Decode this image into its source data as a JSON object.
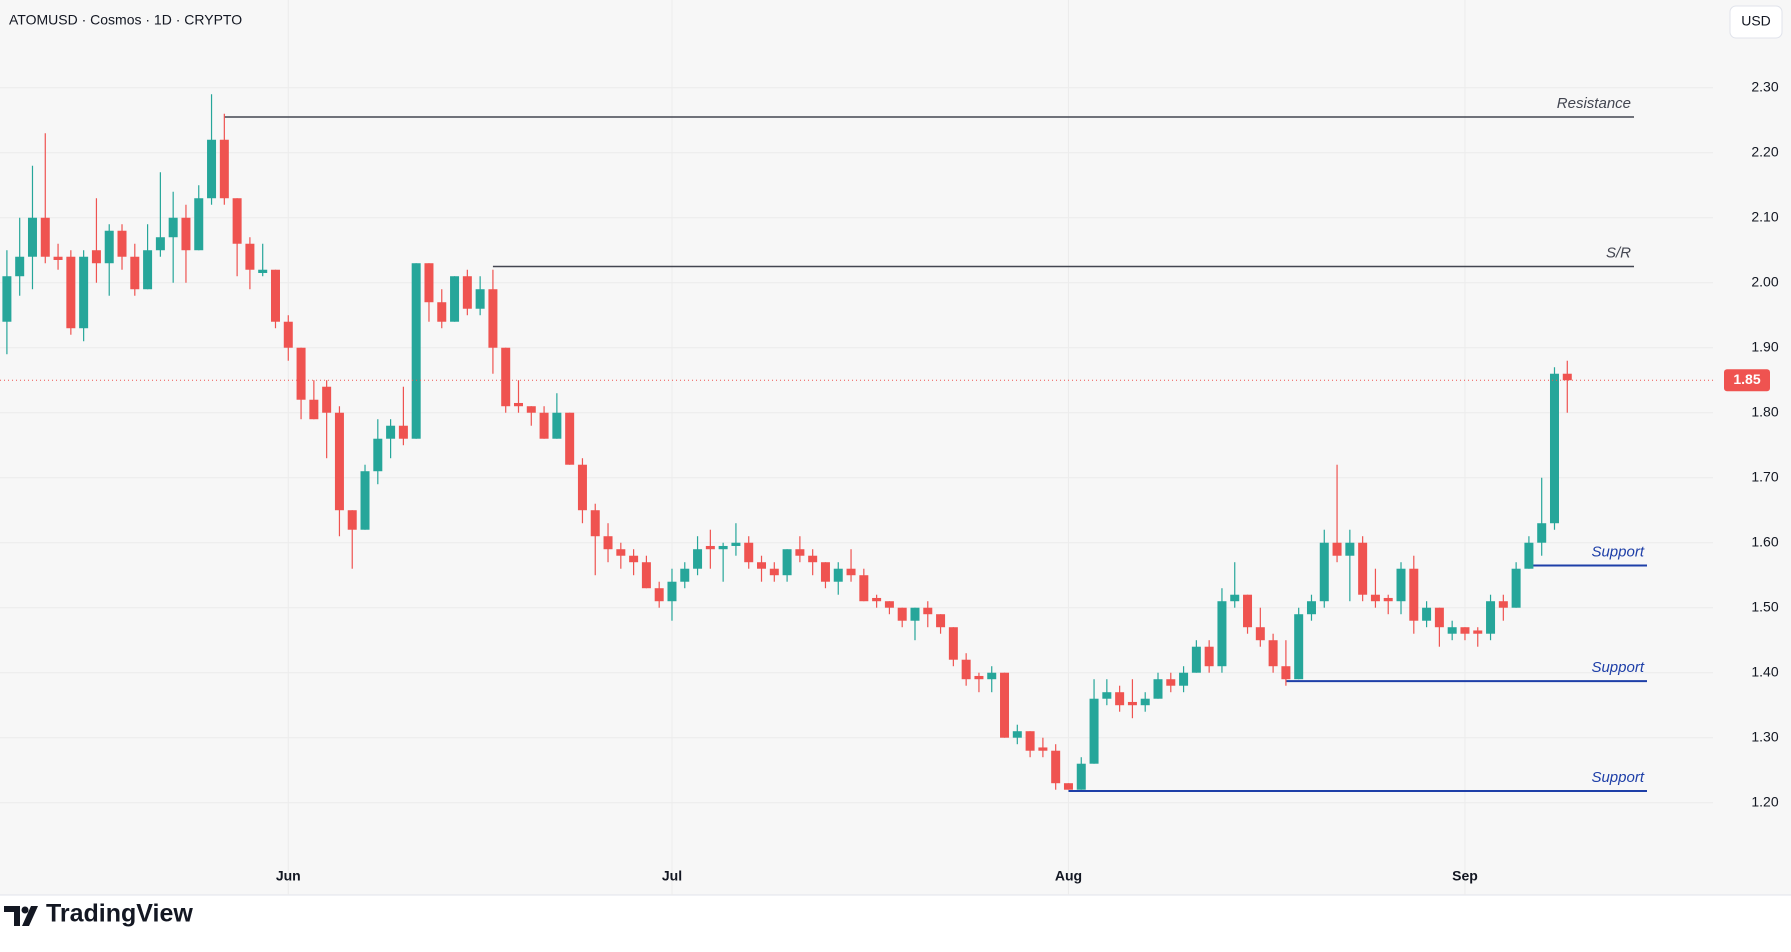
{
  "chart_data": {
    "type": "candlestick",
    "title": "ATOMUSD · Cosmos · 1D · CRYPTO",
    "currency": "USD",
    "brand": "TradingView",
    "up_color": "#26a69a",
    "down_color": "#ef5350",
    "categories": [
      null,
      null,
      null,
      null,
      null,
      null,
      null,
      null,
      null,
      null,
      null,
      null,
      null,
      null,
      null,
      null,
      null,
      null,
      null,
      null,
      null,
      null,
      "Jun",
      null,
      null,
      null,
      null,
      null,
      null,
      null,
      null,
      null,
      null,
      null,
      null,
      null,
      null,
      null,
      null,
      null,
      null,
      null,
      null,
      null,
      null,
      null,
      null,
      null,
      null,
      null,
      null,
      null,
      "Jul",
      null,
      null,
      null,
      null,
      null,
      null,
      null,
      null,
      null,
      null,
      null,
      null,
      null,
      null,
      null,
      null,
      null,
      null,
      null,
      null,
      null,
      null,
      null,
      null,
      null,
      null,
      null,
      null,
      null,
      null,
      "Aug",
      null,
      null,
      null,
      null,
      null,
      null,
      null,
      null,
      null,
      null,
      null,
      null,
      null,
      null,
      null,
      null,
      null,
      null,
      null,
      null,
      null,
      null,
      null,
      null,
      null,
      null,
      null,
      null,
      null,
      null,
      "Sep",
      null,
      null,
      null,
      null,
      null,
      null,
      null,
      null
    ],
    "open": [
      1.94,
      2.01,
      2.04,
      2.1,
      2.04,
      2.04,
      1.93,
      2.05,
      2.03,
      2.08,
      2.04,
      1.99,
      2.05,
      2.07,
      2.1,
      2.05,
      2.13,
      2.22,
      2.13,
      2.06,
      2.015,
      2.02,
      1.94,
      1.9,
      1.82,
      1.84,
      1.8,
      1.65,
      1.62,
      1.71,
      1.76,
      1.78,
      1.76,
      2.03,
      1.97,
      1.94,
      2.01,
      1.96,
      1.99,
      1.9,
      1.815,
      1.81,
      1.8,
      1.76,
      1.8,
      1.72,
      1.65,
      1.61,
      1.59,
      1.58,
      1.57,
      1.53,
      1.51,
      1.54,
      1.56,
      1.595,
      1.59,
      1.595,
      1.6,
      1.57,
      1.56,
      1.55,
      1.59,
      1.58,
      1.57,
      1.54,
      1.56,
      1.55,
      1.515,
      1.51,
      1.5,
      1.48,
      1.5,
      1.49,
      1.47,
      1.42,
      1.395,
      1.39,
      1.4,
      1.3,
      1.31,
      1.285,
      1.28,
      1.23,
      1.22,
      1.26,
      1.36,
      1.37,
      1.355,
      1.35,
      1.36,
      1.39,
      1.38,
      1.4,
      1.44,
      1.41,
      1.51,
      1.52,
      1.47,
      1.45,
      1.41,
      1.39,
      1.49,
      1.51,
      1.6,
      1.58,
      1.6,
      1.52,
      1.515,
      1.51,
      1.56,
      1.48,
      1.5,
      1.46,
      1.47,
      1.465,
      1.46,
      1.51,
      1.5,
      1.56,
      1.6,
      1.63,
      1.86
    ],
    "high": [
      2.05,
      2.1,
      2.18,
      2.23,
      2.06,
      2.05,
      2.05,
      2.13,
      2.09,
      2.09,
      2.06,
      2.09,
      2.17,
      2.14,
      2.12,
      2.15,
      2.29,
      2.26,
      2.13,
      2.07,
      2.06,
      2.02,
      1.95,
      1.9,
      1.85,
      1.85,
      1.81,
      1.65,
      1.72,
      1.79,
      1.79,
      1.84,
      2.03,
      2.03,
      1.99,
      2.01,
      2.02,
      2.01,
      2.02,
      1.9,
      1.85,
      1.81,
      1.81,
      1.83,
      1.8,
      1.73,
      1.66,
      1.63,
      1.6,
      1.59,
      1.58,
      1.54,
      1.56,
      1.57,
      1.61,
      1.62,
      1.6,
      1.63,
      1.61,
      1.58,
      1.57,
      1.59,
      1.61,
      1.59,
      1.57,
      1.57,
      1.59,
      1.56,
      1.52,
      1.51,
      1.5,
      1.5,
      1.51,
      1.49,
      1.47,
      1.43,
      1.4,
      1.41,
      1.4,
      1.32,
      1.31,
      1.3,
      1.29,
      1.23,
      1.27,
      1.39,
      1.39,
      1.38,
      1.39,
      1.37,
      1.4,
      1.4,
      1.41,
      1.45,
      1.45,
      1.53,
      1.57,
      1.52,
      1.5,
      1.46,
      1.45,
      1.5,
      1.52,
      1.62,
      1.72,
      1.62,
      1.61,
      1.56,
      1.52,
      1.57,
      1.58,
      1.51,
      1.5,
      1.48,
      1.47,
      1.47,
      1.52,
      1.52,
      1.57,
      1.61,
      1.7,
      1.87,
      1.88
    ],
    "low": [
      1.89,
      1.98,
      1.99,
      2.03,
      2.02,
      1.92,
      1.91,
      2.0,
      1.98,
      2.02,
      1.98,
      1.99,
      2.04,
      2.0,
      2.0,
      2.05,
      2.12,
      2.12,
      2.01,
      1.99,
      2.01,
      1.93,
      1.88,
      1.79,
      1.79,
      1.73,
      1.61,
      1.56,
      1.62,
      1.69,
      1.73,
      1.75,
      1.76,
      1.94,
      1.93,
      1.94,
      1.95,
      1.95,
      1.86,
      1.8,
      1.8,
      1.78,
      1.76,
      1.76,
      1.72,
      1.63,
      1.55,
      1.57,
      1.56,
      1.55,
      1.53,
      1.5,
      1.48,
      1.53,
      1.55,
      1.56,
      1.54,
      1.58,
      1.56,
      1.54,
      1.54,
      1.54,
      1.57,
      1.55,
      1.53,
      1.52,
      1.54,
      1.51,
      1.5,
      1.49,
      1.47,
      1.45,
      1.47,
      1.46,
      1.41,
      1.38,
      1.37,
      1.37,
      1.3,
      1.29,
      1.27,
      1.27,
      1.22,
      1.22,
      1.22,
      1.26,
      1.35,
      1.34,
      1.33,
      1.34,
      1.36,
      1.37,
      1.37,
      1.4,
      1.4,
      1.4,
      1.5,
      1.46,
      1.44,
      1.4,
      1.38,
      1.39,
      1.48,
      1.5,
      1.57,
      1.51,
      1.51,
      1.5,
      1.49,
      1.49,
      1.46,
      1.47,
      1.44,
      1.45,
      1.45,
      1.44,
      1.45,
      1.48,
      1.5,
      1.56,
      1.58,
      1.62,
      1.8
    ],
    "close": [
      2.01,
      2.04,
      2.1,
      2.04,
      2.035,
      1.93,
      2.04,
      2.03,
      2.08,
      2.04,
      1.99,
      2.05,
      2.07,
      2.1,
      2.05,
      2.13,
      2.22,
      2.13,
      2.06,
      2.02,
      2.02,
      1.94,
      1.9,
      1.82,
      1.79,
      1.8,
      1.65,
      1.62,
      1.71,
      1.76,
      1.78,
      1.76,
      2.03,
      1.97,
      1.94,
      2.01,
      1.96,
      1.99,
      1.9,
      1.81,
      1.81,
      1.8,
      1.76,
      1.8,
      1.72,
      1.65,
      1.61,
      1.59,
      1.58,
      1.57,
      1.53,
      1.51,
      1.54,
      1.56,
      1.59,
      1.59,
      1.595,
      1.6,
      1.57,
      1.56,
      1.55,
      1.59,
      1.58,
      1.57,
      1.54,
      1.56,
      1.55,
      1.51,
      1.51,
      1.5,
      1.48,
      1.5,
      1.49,
      1.47,
      1.42,
      1.39,
      1.39,
      1.4,
      1.3,
      1.31,
      1.28,
      1.28,
      1.23,
      1.22,
      1.26,
      1.36,
      1.37,
      1.35,
      1.35,
      1.36,
      1.39,
      1.38,
      1.4,
      1.44,
      1.41,
      1.51,
      1.52,
      1.47,
      1.45,
      1.41,
      1.39,
      1.49,
      1.51,
      1.6,
      1.58,
      1.6,
      1.52,
      1.51,
      1.51,
      1.56,
      1.48,
      1.5,
      1.47,
      1.47,
      1.46,
      1.46,
      1.51,
      1.5,
      1.56,
      1.6,
      1.63,
      1.86,
      1.85
    ],
    "ylim": [
      1.058,
      2.435
    ],
    "yticks": [
      {
        "value": 1.2,
        "label": "1.20"
      },
      {
        "value": 1.3,
        "label": "1.30"
      },
      {
        "value": 1.4,
        "label": "1.40"
      },
      {
        "value": 1.5,
        "label": "1.50"
      },
      {
        "value": 1.6,
        "label": "1.60"
      },
      {
        "value": 1.7,
        "label": "1.70"
      },
      {
        "value": 1.8,
        "label": "1.80"
      },
      {
        "value": 1.9,
        "label": "1.90"
      },
      {
        "value": 2.0,
        "label": "2.00"
      },
      {
        "value": 2.1,
        "label": "2.10"
      },
      {
        "value": 2.2,
        "label": "2.20"
      },
      {
        "value": 2.3,
        "label": "2.30"
      }
    ],
    "grid": true,
    "last_price": {
      "value": 1.85,
      "label": "1.85"
    },
    "levels": [
      {
        "label": "Resistance",
        "value": 2.255,
        "start": 17,
        "color": "#434651"
      },
      {
        "label": "S/R",
        "value": 2.025,
        "start": 38,
        "color": "#434651"
      },
      {
        "label": "Support",
        "value": 1.565,
        "start": 119,
        "color": "#1e3fa8"
      },
      {
        "label": "Support",
        "value": 1.387,
        "start": 100,
        "color": "#1e3fa8"
      },
      {
        "label": "Support",
        "value": 1.218,
        "start": 83,
        "color": "#1e3fa8"
      }
    ]
  }
}
